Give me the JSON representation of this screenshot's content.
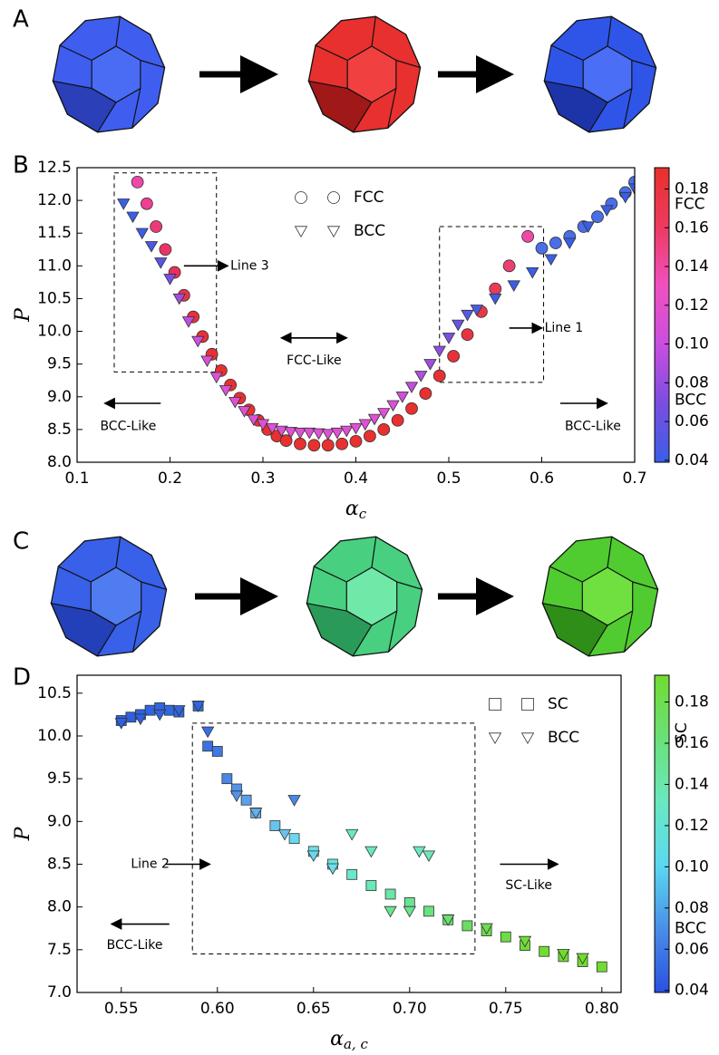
{
  "panels": [
    "A",
    "B",
    "C",
    "D"
  ],
  "chart_data": [
    {
      "type": "scatter",
      "xlabel": "α",
      "xlabel_sub": "c",
      "ylabel": "P",
      "xlim": [
        0.1,
        0.7
      ],
      "ylim": [
        8.0,
        12.5
      ],
      "xticks": [
        0.1,
        0.2,
        0.3,
        0.4,
        0.5,
        0.6,
        0.7
      ],
      "yticks": [
        {
          "value": 8,
          "label": "8.0"
        },
        8.5,
        {
          "value": 9,
          "label": "9.0"
        },
        9.5,
        {
          "value": 10,
          "label": "10.0"
        },
        10.5,
        {
          "value": 11,
          "label": "11.0"
        },
        11.5,
        {
          "value": 12,
          "label": "12.0"
        },
        12.5
      ],
      "annotations": [
        "Line 3",
        "Line 1",
        "FCC-Like",
        "BCC-Like",
        "BCC-Like"
      ],
      "colorbar": {
        "lim": [
          0.039,
          0.191
        ],
        "ticks": [
          0.04,
          0.06,
          0.08,
          {
            "value": 0.1,
            "label": "0.10"
          },
          0.12,
          0.14,
          0.16,
          0.18
        ],
        "labels": [
          "FCC",
          "BCC"
        ],
        "colormap": [
          "#3a5ee8",
          "#7a4ee0",
          "#c94ee0",
          "#f050c0",
          "#ee3a60",
          "#e8302a"
        ]
      },
      "series": [
        {
          "name": "FCC",
          "marker": "circle",
          "x": [
            0.165,
            0.175,
            0.185,
            0.195,
            0.205,
            0.215,
            0.225,
            0.235,
            0.245,
            0.255,
            0.265,
            0.275,
            0.285,
            0.295,
            0.305,
            0.315,
            0.325,
            0.34,
            0.355,
            0.37,
            0.385,
            0.4,
            0.415,
            0.43,
            0.445,
            0.46,
            0.475,
            0.49,
            0.505,
            0.52,
            0.535,
            0.55,
            0.565,
            0.585,
            0.6,
            0.615,
            0.63,
            0.645,
            0.66,
            0.675,
            0.69,
            0.7
          ],
          "values": [
            12.28,
            11.95,
            11.6,
            11.25,
            10.9,
            10.55,
            10.22,
            9.92,
            9.65,
            9.4,
            9.18,
            8.98,
            8.8,
            8.64,
            8.5,
            8.4,
            8.33,
            8.28,
            8.26,
            8.26,
            8.28,
            8.32,
            8.4,
            8.5,
            8.64,
            8.82,
            9.05,
            9.32,
            9.62,
            9.95,
            10.3,
            10.65,
            11.0,
            11.45,
            11.27,
            11.35,
            11.45,
            11.6,
            11.75,
            11.95,
            12.12,
            12.28
          ],
          "colors": [
            "#f048a8",
            "#ee4090",
            "#ec3a78",
            "#ea3468",
            "#e8305a",
            "#e8304c",
            "#e83040",
            "#e83038",
            "#e83034",
            "#e83030",
            "#e83030",
            "#e83030",
            "#e83030",
            "#e83030",
            "#e83030",
            "#e83030",
            "#e83030",
            "#e83030",
            "#e83030",
            "#e83030",
            "#e83030",
            "#e83030",
            "#e83030",
            "#e83030",
            "#e83030",
            "#e83030",
            "#e83030",
            "#e83034",
            "#e83038",
            "#e83440",
            "#e83848",
            "#ea3c58",
            "#ec4070",
            "#f048a8",
            "#4a6ee8",
            "#4a6ee8",
            "#4a6ee8",
            "#4a6ee8",
            "#4a6ee8",
            "#4a6ee8",
            "#4a6ee8",
            "#4a6ee8"
          ]
        },
        {
          "name": "BCC",
          "marker": "triangle",
          "x": [
            0.15,
            0.16,
            0.17,
            0.18,
            0.19,
            0.2,
            0.21,
            0.22,
            0.23,
            0.24,
            0.25,
            0.26,
            0.27,
            0.28,
            0.29,
            0.3,
            0.31,
            0.32,
            0.33,
            0.34,
            0.35,
            0.36,
            0.37,
            0.38,
            0.39,
            0.4,
            0.41,
            0.42,
            0.43,
            0.44,
            0.45,
            0.46,
            0.47,
            0.48,
            0.49,
            0.5,
            0.51,
            0.52,
            0.53,
            0.55,
            0.57,
            0.59,
            0.61,
            0.63,
            0.65,
            0.67,
            0.69,
            0.7
          ],
          "values": [
            11.95,
            11.75,
            11.5,
            11.3,
            11.05,
            10.8,
            10.5,
            10.15,
            9.85,
            9.55,
            9.3,
            9.1,
            8.92,
            8.78,
            8.65,
            8.58,
            8.52,
            8.48,
            8.46,
            8.45,
            8.45,
            8.44,
            8.43,
            8.45,
            8.48,
            8.52,
            8.58,
            8.66,
            8.75,
            8.87,
            9.0,
            9.15,
            9.32,
            9.5,
            9.7,
            9.9,
            10.1,
            10.25,
            10.33,
            10.5,
            10.7,
            10.9,
            11.1,
            11.35,
            11.6,
            11.85,
            12.05,
            12.18
          ],
          "colors": [
            "#3a5ee8",
            "#3a5ee8",
            "#3e5ce8",
            "#4a58e6",
            "#5a54e4",
            "#7a50e2",
            "#a04ee0",
            "#c04ede",
            "#d04edc",
            "#d850da",
            "#dc50d8",
            "#e050d6",
            "#e050d6",
            "#e050d6",
            "#e050d6",
            "#e050d6",
            "#e050d6",
            "#e050d6",
            "#e050d6",
            "#e050d6",
            "#e050d6",
            "#e050d6",
            "#e050d6",
            "#e050d6",
            "#e050d6",
            "#e050d6",
            "#e050d6",
            "#e050d6",
            "#e050d6",
            "#dc50d8",
            "#d050da",
            "#c04edc",
            "#b04ede",
            "#a04ee0",
            "#904ee2",
            "#7a50e2",
            "#6a54e4",
            "#5a58e6",
            "#4a5ce6",
            "#3e5ee8",
            "#3a5ee8",
            "#3a5ee8",
            "#3a5ee8",
            "#3a5ee8",
            "#3a5ee8",
            "#3a5ee8",
            "#3a5ee8",
            "#3a5ee8"
          ]
        }
      ]
    },
    {
      "type": "scatter",
      "xlabel": "α",
      "xlabel_sub": "a, c",
      "ylabel": "P",
      "xlim": [
        0.527,
        0.81
      ],
      "ylim": [
        7.0,
        10.71
      ],
      "xticks": [
        0.55,
        {
          "value": 0.6,
          "label": "0.60"
        },
        0.65,
        {
          "value": 0.7,
          "label": "0.70"
        },
        0.75,
        {
          "value": 0.8,
          "label": "0.80"
        }
      ],
      "yticks": [
        {
          "value": 7,
          "label": "7.0"
        },
        7.5,
        {
          "value": 8,
          "label": "8.0"
        },
        8.5,
        {
          "value": 9,
          "label": "9.0"
        },
        9.5,
        {
          "value": 10,
          "label": "10.0"
        },
        10.5
      ],
      "annotations": [
        "Line 2",
        "SC-Like",
        "BCC-Like"
      ],
      "colorbar": {
        "lim": [
          0.039,
          0.193
        ],
        "ticks": [
          0.04,
          0.06,
          0.08,
          {
            "value": 0.1,
            "label": "0.10"
          },
          0.12,
          0.14,
          0.16,
          0.18
        ],
        "labels": [
          "SC",
          "BCC"
        ],
        "colormap": [
          "#2a50e0",
          "#4a8ee8",
          "#5ad8f0",
          "#6ae8c0",
          "#6ae078",
          "#70dc30"
        ]
      },
      "series": [
        {
          "name": "SC",
          "marker": "square",
          "x": [
            0.55,
            0.555,
            0.56,
            0.565,
            0.57,
            0.575,
            0.58,
            0.59,
            0.595,
            0.6,
            0.605,
            0.61,
            0.615,
            0.62,
            0.63,
            0.64,
            0.65,
            0.66,
            0.67,
            0.68,
            0.69,
            0.7,
            0.71,
            0.72,
            0.73,
            0.74,
            0.75,
            0.76,
            0.77,
            0.78,
            0.79,
            0.8
          ],
          "values": [
            10.18,
            10.22,
            10.25,
            10.3,
            10.33,
            10.3,
            10.28,
            10.35,
            9.88,
            9.82,
            9.5,
            9.38,
            9.25,
            9.1,
            8.95,
            8.8,
            8.65,
            8.5,
            8.38,
            8.25,
            8.15,
            8.05,
            7.95,
            7.85,
            7.78,
            7.72,
            7.65,
            7.55,
            7.48,
            7.42,
            7.36,
            7.3
          ],
          "colors": [
            "#3060e0",
            "#3060e0",
            "#3062e0",
            "#3064e0",
            "#3066e0",
            "#3068e0",
            "#306ae0",
            "#306ce2",
            "#3a72e2",
            "#4078e4",
            "#4a86e6",
            "#5294e8",
            "#5aa0ea",
            "#62b0ec",
            "#68c4ee",
            "#6ad6f0",
            "#6ae0ea",
            "#6ae6dc",
            "#6ae8ca",
            "#6ae8b8",
            "#6ae6a6",
            "#6ae494",
            "#6ae282",
            "#6ae070",
            "#6ade60",
            "#6cdc50",
            "#6edc44",
            "#70dc3a",
            "#70dc34",
            "#70dc30",
            "#70dc30",
            "#70dc30"
          ]
        },
        {
          "name": "BCC",
          "marker": "triangle",
          "x": [
            0.55,
            0.56,
            0.57,
            0.58,
            0.59,
            0.595,
            0.61,
            0.62,
            0.635,
            0.65,
            0.66,
            0.64,
            0.67,
            0.68,
            0.705,
            0.71,
            0.69,
            0.7,
            0.72,
            0.74,
            0.76,
            0.78,
            0.79
          ],
          "values": [
            10.15,
            10.2,
            10.25,
            10.3,
            10.35,
            10.05,
            9.3,
            9.1,
            8.85,
            8.6,
            8.45,
            9.25,
            8.85,
            8.65,
            8.65,
            8.6,
            7.95,
            7.95,
            7.85,
            7.75,
            7.6,
            7.45,
            7.4
          ],
          "colors": [
            "#3060e0",
            "#3060e0",
            "#3062e0",
            "#3064e0",
            "#3066e0",
            "#3a70e2",
            "#5294e8",
            "#62b0ec",
            "#68c4ee",
            "#6ad6f0",
            "#6ae0ea",
            "#4a88e6",
            "#6ae8c0",
            "#6ae8b8",
            "#6ae8c0",
            "#6ae8b8",
            "#6ae494",
            "#6ae48c",
            "#6ae070",
            "#6cdc50",
            "#70dc3a",
            "#70dc30",
            "#70dc30"
          ]
        }
      ]
    }
  ]
}
